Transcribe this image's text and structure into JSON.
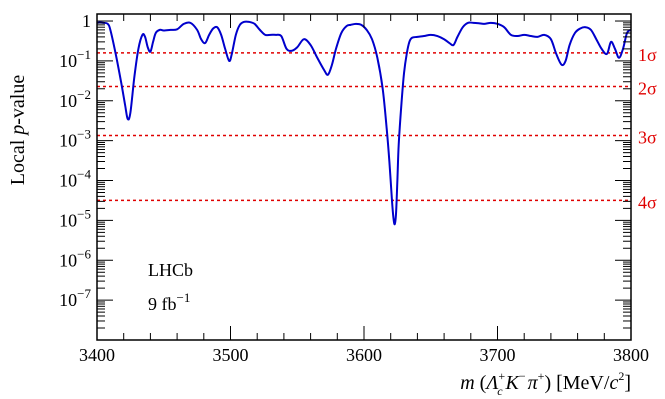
{
  "chart_data": {
    "type": "line",
    "title": "",
    "xlabel_parts": {
      "m": "m",
      "open": " (",
      "lambda": "Λ",
      "lambda_sub": "c",
      "lambda_sup": "+",
      "k": "K",
      "k_sup": "−",
      "pi": "π",
      "pi_sup": "+",
      "close": ") [MeV/",
      "c": "c",
      "c_sup": "2",
      "end": "]"
    },
    "ylabel_parts": {
      "pre": "Local ",
      "p": "p",
      "post": "-value"
    },
    "xlim": [
      3400,
      3800
    ],
    "ylim": [
      1e-08,
      1.5
    ],
    "yscale": "log",
    "x_ticks": [
      3400,
      3500,
      3600,
      3700,
      3800
    ],
    "y_ticks": [
      {
        "value": 1,
        "label": "1"
      },
      {
        "value": 0.1,
        "base": "10",
        "exp": "−1"
      },
      {
        "value": 0.01,
        "base": "10",
        "exp": "−2"
      },
      {
        "value": 0.001,
        "base": "10",
        "exp": "−3"
      },
      {
        "value": 0.0001,
        "base": "10",
        "exp": "−4"
      },
      {
        "value": 1e-05,
        "base": "10",
        "exp": "−5"
      },
      {
        "value": 1e-06,
        "base": "10",
        "exp": "−6"
      },
      {
        "value": 1e-07,
        "base": "10",
        "exp": "−7"
      }
    ],
    "sigma_lines": [
      {
        "label": "1σ",
        "value": 0.1587
      },
      {
        "label": "2σ",
        "value": 0.02275
      },
      {
        "label": "3σ",
        "value": 0.00135
      },
      {
        "label": "4σ",
        "value": 3.17e-05
      }
    ],
    "annotation": {
      "experiment": "LHCb",
      "lumi_value": "9 fb",
      "lumi_exp": "−1"
    },
    "series": [
      {
        "color": "#0000cc",
        "x": [
          3400,
          3402,
          3405,
          3408,
          3410,
          3414,
          3418,
          3421,
          3423,
          3425,
          3428,
          3431,
          3434,
          3436,
          3438,
          3440,
          3442,
          3444,
          3447,
          3450,
          3455,
          3460,
          3465,
          3470,
          3475,
          3478,
          3481,
          3484,
          3487,
          3490,
          3493,
          3496,
          3499,
          3501,
          3504,
          3507,
          3510,
          3514,
          3518,
          3522,
          3526,
          3530,
          3534,
          3538,
          3542,
          3546,
          3550,
          3555,
          3560,
          3565,
          3570,
          3573,
          3576,
          3579,
          3583,
          3587,
          3590,
          3594,
          3598,
          3602,
          3606,
          3610,
          3614,
          3617,
          3619,
          3621,
          3622,
          3623,
          3624,
          3625,
          3626,
          3628,
          3630,
          3632,
          3634,
          3636,
          3640,
          3645,
          3650,
          3655,
          3660,
          3664,
          3667,
          3670,
          3674,
          3678,
          3682,
          3686,
          3690,
          3695,
          3700,
          3705,
          3710,
          3715,
          3720,
          3725,
          3730,
          3735,
          3740,
          3744,
          3748,
          3751,
          3754,
          3758,
          3762,
          3766,
          3770,
          3774,
          3778,
          3782,
          3785,
          3788,
          3791,
          3794,
          3797,
          3800
        ],
        "y": [
          0.9,
          0.92,
          0.9,
          0.85,
          0.6,
          0.15,
          0.03,
          0.008,
          0.0035,
          0.005,
          0.04,
          0.2,
          0.45,
          0.4,
          0.22,
          0.17,
          0.3,
          0.5,
          0.6,
          0.58,
          0.6,
          0.62,
          0.85,
          0.9,
          0.6,
          0.35,
          0.28,
          0.45,
          0.65,
          0.7,
          0.45,
          0.2,
          0.1,
          0.15,
          0.45,
          0.8,
          0.95,
          0.95,
          0.85,
          0.6,
          0.45,
          0.45,
          0.45,
          0.42,
          0.2,
          0.18,
          0.22,
          0.35,
          0.25,
          0.12,
          0.06,
          0.045,
          0.08,
          0.2,
          0.5,
          0.75,
          0.8,
          0.85,
          0.8,
          0.6,
          0.35,
          0.12,
          0.02,
          0.002,
          0.0003,
          3e-05,
          1.2e-05,
          8e-06,
          1.5e-05,
          0.0001,
          0.0008,
          0.008,
          0.05,
          0.15,
          0.3,
          0.38,
          0.4,
          0.42,
          0.45,
          0.42,
          0.35,
          0.28,
          0.25,
          0.4,
          0.7,
          0.9,
          0.9,
          0.88,
          0.85,
          0.9,
          0.85,
          0.7,
          0.45,
          0.42,
          0.45,
          0.42,
          0.4,
          0.45,
          0.35,
          0.15,
          0.08,
          0.1,
          0.25,
          0.5,
          0.65,
          0.7,
          0.6,
          0.35,
          0.2,
          0.15,
          0.3,
          0.2,
          0.12,
          0.2,
          0.5,
          0.6
        ]
      }
    ]
  }
}
